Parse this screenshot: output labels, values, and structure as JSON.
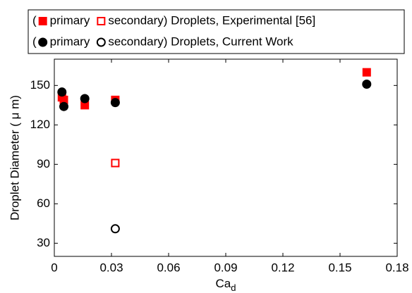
{
  "chart_data": {
    "type": "scatter",
    "xlabel": "Ca",
    "xlabel_sub": "d",
    "ylabel": "Droplet Diameter ( μ m)",
    "legend_prefix": "(",
    "legend_ncol": 2,
    "legend": "top",
    "xlim": [
      0,
      0.18
    ],
    "xticks": [
      0,
      0.03,
      0.06,
      0.09,
      0.12,
      0.15,
      0.18
    ],
    "ylim": [
      20,
      170
    ],
    "yticks": [
      30,
      60,
      90,
      120,
      150
    ],
    "grid": false,
    "series": [
      {
        "name": "primary",
        "color": "#ff0000",
        "marker": "square",
        "filled": true,
        "x": [
          0.004,
          0.005,
          0.016,
          0.032,
          0.164
        ],
        "values": [
          141,
          139,
          135,
          139,
          160
        ]
      },
      {
        "name": "secondary) Droplets, Experimental [56]",
        "color": "#ff0000",
        "marker": "square",
        "filled": false,
        "x": [
          0.032
        ],
        "values": [
          91
        ]
      },
      {
        "name": "primary",
        "color": "#000000",
        "marker": "circle",
        "filled": true,
        "x": [
          0.004,
          0.005,
          0.016,
          0.032,
          0.164
        ],
        "values": [
          145,
          134,
          140,
          137,
          151
        ]
      },
      {
        "name": "secondary) Droplets, Current Work",
        "color": "#000000",
        "marker": "circle",
        "filled": false,
        "x": [
          0.032
        ],
        "values": [
          41
        ]
      }
    ]
  }
}
